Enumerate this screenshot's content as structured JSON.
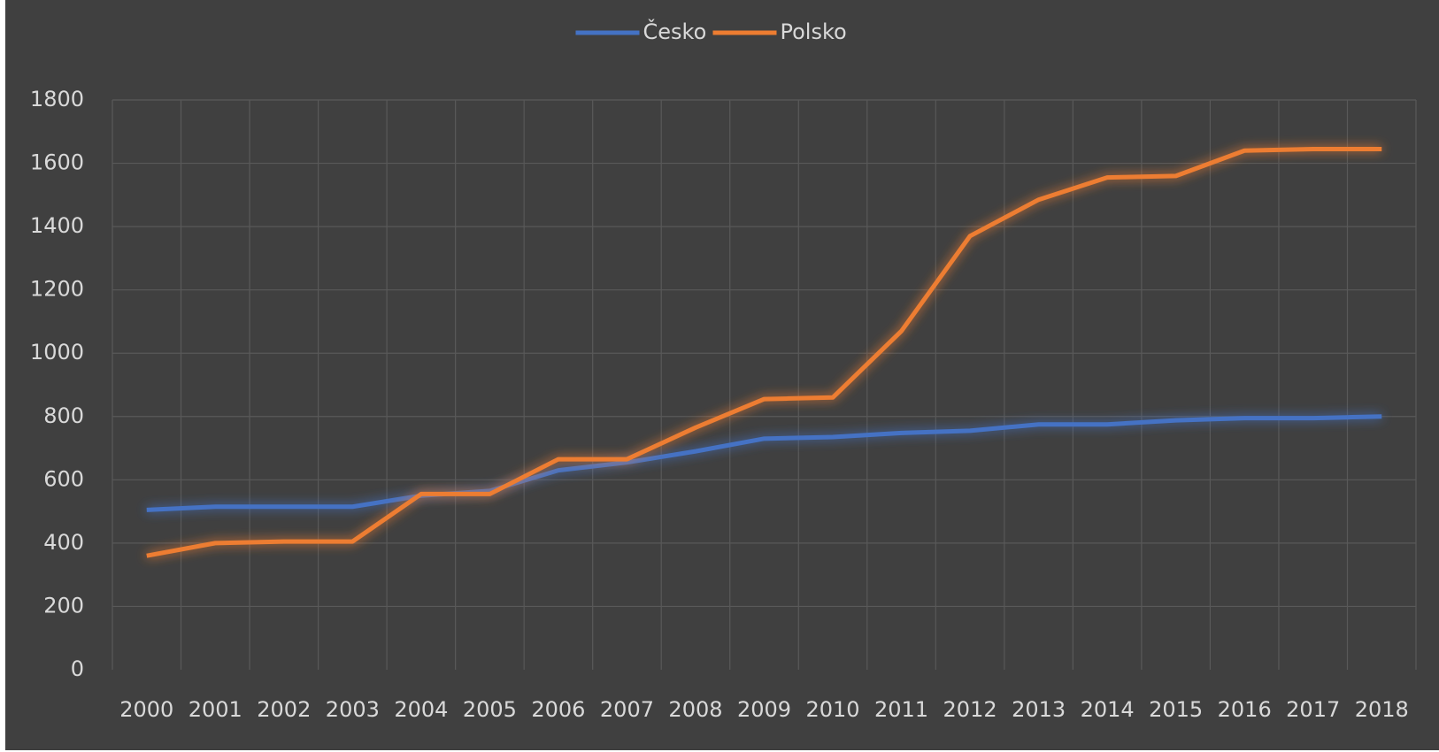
{
  "chart_data": {
    "type": "line",
    "categories": [
      "2000",
      "2001",
      "2002",
      "2003",
      "2004",
      "2005",
      "2006",
      "2007",
      "2008",
      "2009",
      "2010",
      "2011",
      "2012",
      "2013",
      "2014",
      "2015",
      "2016",
      "2017",
      "2018"
    ],
    "series": [
      {
        "name": "Česko",
        "color": "#4472c4",
        "values": [
          505,
          515,
          515,
          515,
          550,
          565,
          630,
          655,
          690,
          730,
          735,
          748,
          755,
          775,
          775,
          788,
          795,
          795,
          800
        ]
      },
      {
        "name": "Polsko",
        "color": "#ed7d31",
        "values": [
          360,
          400,
          405,
          405,
          555,
          555,
          665,
          665,
          765,
          855,
          860,
          1070,
          1370,
          1485,
          1555,
          1560,
          1640,
          1645,
          1645
        ]
      }
    ],
    "ylim": [
      0,
      1800
    ],
    "yticks": [
      0,
      200,
      400,
      600,
      800,
      1000,
      1200,
      1400,
      1600,
      1800
    ],
    "grid": true,
    "legend": "top"
  }
}
